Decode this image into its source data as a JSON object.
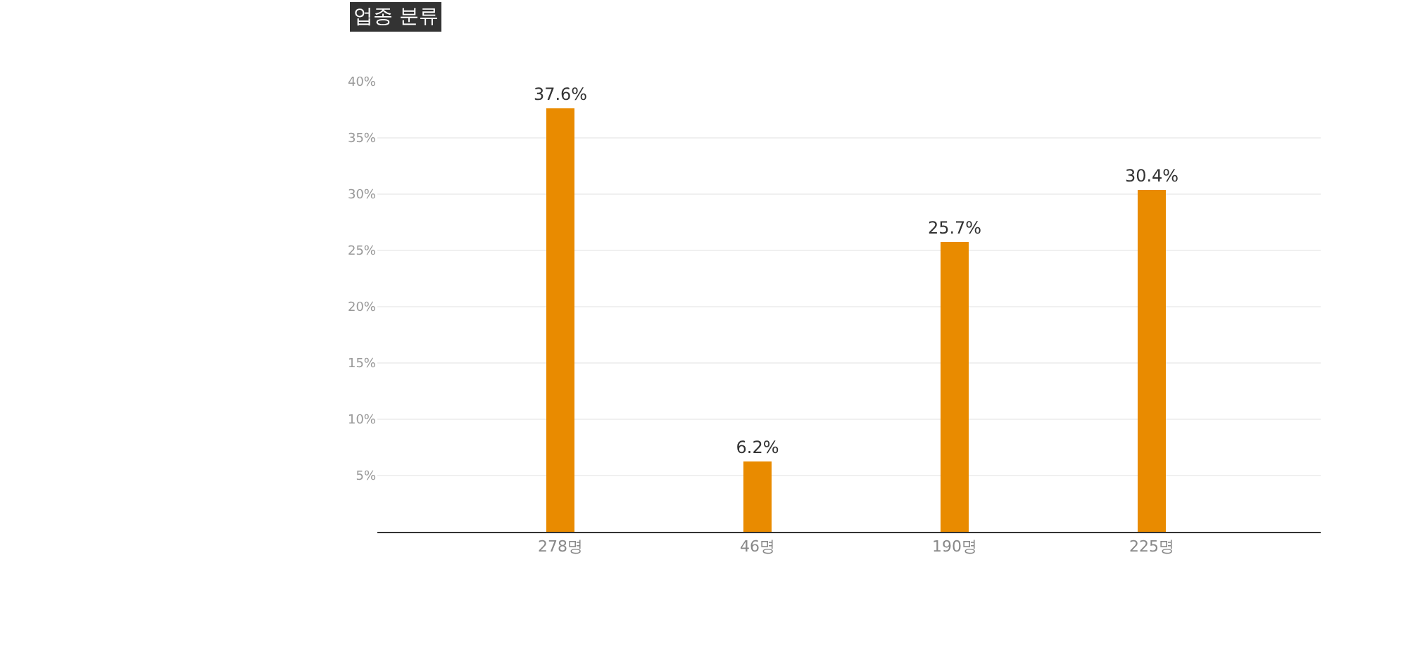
{
  "chart_data": {
    "type": "bar",
    "title": "업종 분류",
    "categories": [
      "278명",
      "46명",
      "190명",
      "225명"
    ],
    "values": [
      37.6,
      6.2,
      25.7,
      30.4
    ],
    "color": "#e98b00",
    "value_labels": [
      "37.6%",
      "6.2%",
      "25.7%",
      "30.4%"
    ],
    "ylim": [
      0,
      40
    ],
    "yticks": [
      {
        "value": 5,
        "label": "5%"
      },
      {
        "value": 10,
        "label": "10%"
      },
      {
        "value": 15,
        "label": "15%"
      },
      {
        "value": 20,
        "label": "20%"
      },
      {
        "value": 25,
        "label": "25%"
      },
      {
        "value": 30,
        "label": "30%"
      },
      {
        "value": 35,
        "label": "35%"
      },
      {
        "value": 40,
        "label": "40%"
      }
    ],
    "grid": "y"
  }
}
